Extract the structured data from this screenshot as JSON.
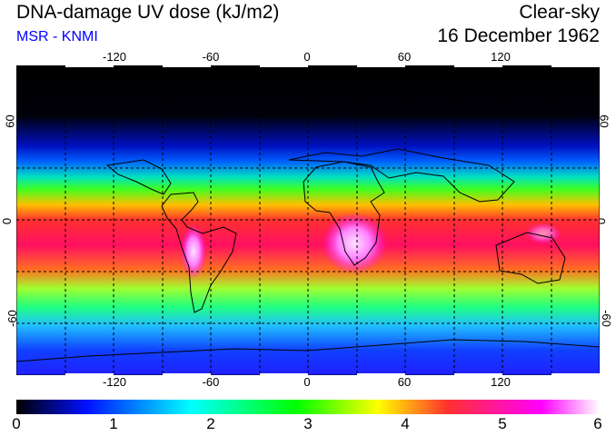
{
  "header": {
    "title": "DNA-damage UV dose (kJ/m2)",
    "source": "MSR - KNMI",
    "condition": "Clear-sky",
    "date": "16 December 1962"
  },
  "map": {
    "longitude_labels": [
      "-120",
      "-60",
      "0",
      "60",
      "120"
    ],
    "latitude_labels": [
      "60",
      "0",
      "-60"
    ],
    "grid": "dashed every 30 degrees"
  },
  "colorbar": {
    "ticks": [
      "0",
      "1",
      "2",
      "3",
      "4",
      "5",
      "6"
    ],
    "colors": [
      "#000000",
      "#0010ff",
      "#00ffff",
      "#00ff00",
      "#ffff00",
      "#ff3030",
      "#ff00ff",
      "#ffffff"
    ]
  }
}
